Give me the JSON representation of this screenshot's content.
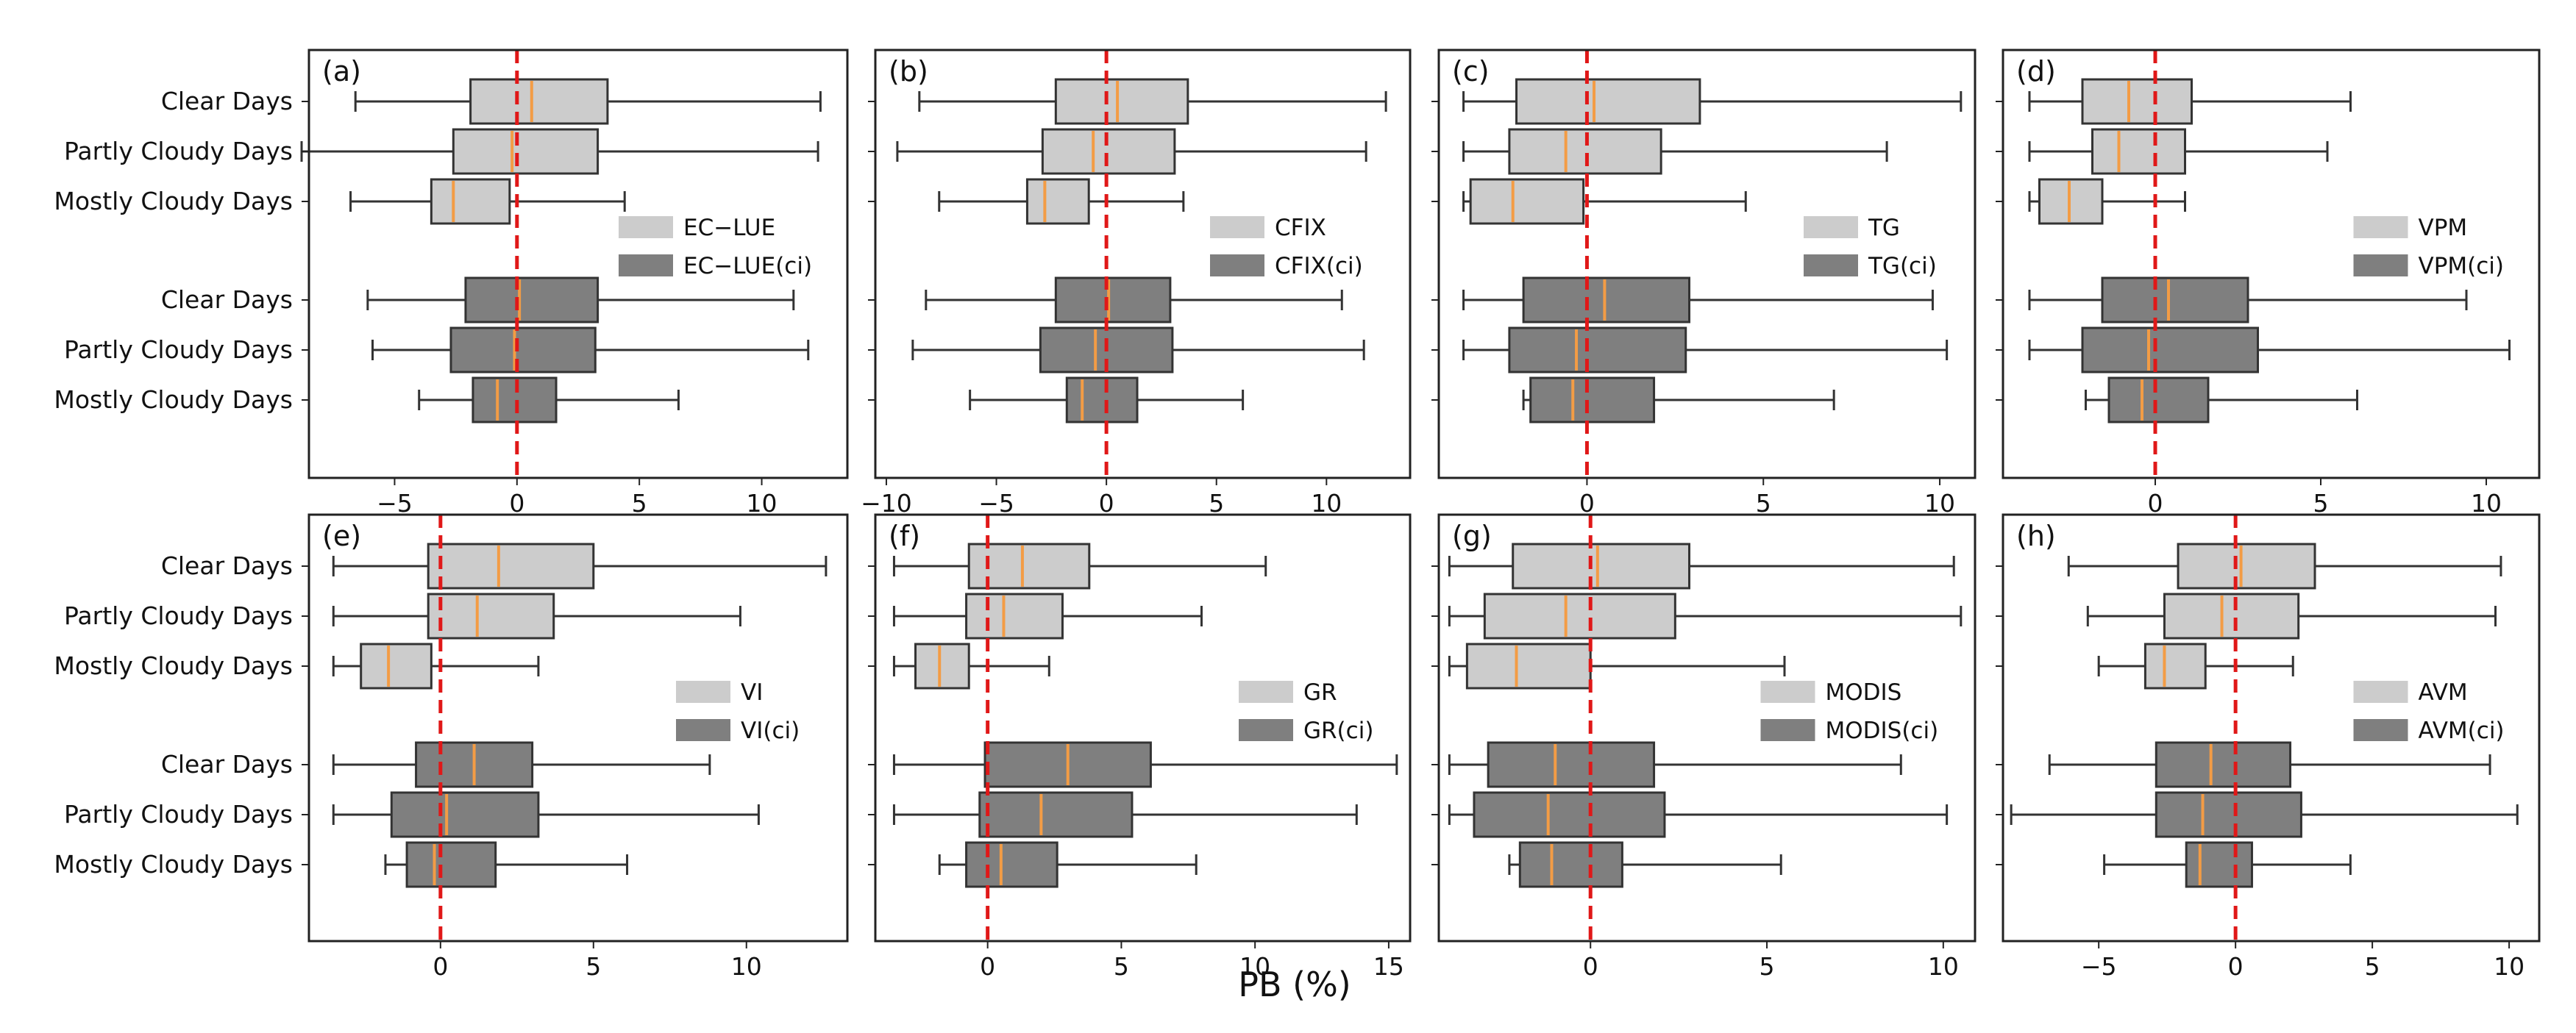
{
  "figure": {
    "xlabel": "PB (%)",
    "categories": [
      "Clear Days",
      "Partly Cloudy Days",
      "Mostly Cloudy Days",
      "Clear Days",
      "Partly Cloudy Days",
      "Mostly Cloudy Days"
    ],
    "colors": {
      "light": "#cccccc",
      "dark": "#7f7f7f",
      "median": "#f39c45",
      "zero_line": "#e01818",
      "whisker": "#333333"
    }
  },
  "chart_data": [
    {
      "type": "boxplot",
      "label": "(a)",
      "xlim": [
        -8.5,
        13.5
      ],
      "xticks": [
        -5,
        0,
        5,
        10
      ],
      "legend": [
        "EC−LUE",
        "EC−LUE(ci)"
      ],
      "boxes": [
        {
          "category": "Clear Days",
          "group": "EC−LUE",
          "whislo": -6.6,
          "q1": -1.9,
          "med": 0.6,
          "q3": 3.7,
          "whishi": 12.4
        },
        {
          "category": "Partly Cloudy Days",
          "group": "EC−LUE",
          "whislo": -8.8,
          "q1": -2.6,
          "med": -0.2,
          "q3": 3.3,
          "whishi": 12.3
        },
        {
          "category": "Mostly Cloudy Days",
          "group": "EC−LUE",
          "whislo": -6.8,
          "q1": -3.5,
          "med": -2.6,
          "q3": -0.3,
          "whishi": 4.4
        },
        {
          "category": "Clear Days",
          "group": "EC−LUE(ci)",
          "whislo": -6.1,
          "q1": -2.1,
          "med": 0.1,
          "q3": 3.3,
          "whishi": 11.3
        },
        {
          "category": "Partly Cloudy Days",
          "group": "EC−LUE(ci)",
          "whislo": -5.9,
          "q1": -2.7,
          "med": -0.1,
          "q3": 3.2,
          "whishi": 11.9
        },
        {
          "category": "Mostly Cloudy Days",
          "group": "EC−LUE(ci)",
          "whislo": -4.0,
          "q1": -1.8,
          "med": -0.8,
          "q3": 1.6,
          "whishi": 6.6
        }
      ]
    },
    {
      "type": "boxplot",
      "label": "(b)",
      "xlim": [
        -10.5,
        13.8
      ],
      "xticks": [
        -10,
        -5,
        0,
        5,
        10
      ],
      "legend": [
        "CFIX",
        "CFIX(ci)"
      ],
      "boxes": [
        {
          "category": "Clear Days",
          "group": "CFIX",
          "whislo": -8.5,
          "q1": -2.3,
          "med": 0.5,
          "q3": 3.7,
          "whishi": 12.7
        },
        {
          "category": "Partly Cloudy Days",
          "group": "CFIX",
          "whislo": -9.5,
          "q1": -2.9,
          "med": -0.6,
          "q3": 3.1,
          "whishi": 11.8
        },
        {
          "category": "Mostly Cloudy Days",
          "group": "CFIX",
          "whislo": -7.6,
          "q1": -3.6,
          "med": -2.8,
          "q3": -0.8,
          "whishi": 3.5
        },
        {
          "category": "Clear Days",
          "group": "CFIX(ci)",
          "whislo": -8.2,
          "q1": -2.3,
          "med": 0.1,
          "q3": 2.9,
          "whishi": 10.7
        },
        {
          "category": "Partly Cloudy Days",
          "group": "CFIX(ci)",
          "whislo": -8.8,
          "q1": -3.0,
          "med": -0.5,
          "q3": 3.0,
          "whishi": 11.7
        },
        {
          "category": "Mostly Cloudy Days",
          "group": "CFIX(ci)",
          "whislo": -6.2,
          "q1": -1.8,
          "med": -1.1,
          "q3": 1.4,
          "whishi": 6.2
        }
      ]
    },
    {
      "type": "boxplot",
      "label": "(c)",
      "xlim": [
        -4.2,
        11.0
      ],
      "xticks": [
        0,
        5,
        10
      ],
      "legend": [
        "TG",
        "TG(ci)"
      ],
      "boxes": [
        {
          "category": "Clear Days",
          "group": "TG",
          "whislo": -3.5,
          "q1": -2.0,
          "med": 0.2,
          "q3": 3.2,
          "whishi": 10.6
        },
        {
          "category": "Partly Cloudy Days",
          "group": "TG",
          "whislo": -3.5,
          "q1": -2.2,
          "med": -0.6,
          "q3": 2.1,
          "whishi": 8.5
        },
        {
          "category": "Mostly Cloudy Days",
          "group": "TG",
          "whislo": -3.5,
          "q1": -3.3,
          "med": -2.1,
          "q3": -0.1,
          "whishi": 4.5
        },
        {
          "category": "Clear Days",
          "group": "TG(ci)",
          "whislo": -3.5,
          "q1": -1.8,
          "med": 0.5,
          "q3": 2.9,
          "whishi": 9.8
        },
        {
          "category": "Partly Cloudy Days",
          "group": "TG(ci)",
          "whislo": -3.5,
          "q1": -2.2,
          "med": -0.3,
          "q3": 2.8,
          "whishi": 10.2
        },
        {
          "category": "Mostly Cloudy Days",
          "group": "TG(ci)",
          "whislo": -1.8,
          "q1": -1.6,
          "med": -0.4,
          "q3": 1.9,
          "whishi": 7.0
        }
      ]
    },
    {
      "type": "boxplot",
      "label": "(d)",
      "xlim": [
        -4.6,
        11.6
      ],
      "xticks": [
        0,
        5,
        10
      ],
      "legend": [
        "VPM",
        "VPM(ci)"
      ],
      "boxes": [
        {
          "category": "Clear Days",
          "group": "VPM",
          "whislo": -3.8,
          "q1": -2.2,
          "med": -0.8,
          "q3": 1.1,
          "whishi": 5.9
        },
        {
          "category": "Partly Cloudy Days",
          "group": "VPM",
          "whislo": -3.8,
          "q1": -1.9,
          "med": -1.1,
          "q3": 0.9,
          "whishi": 5.2
        },
        {
          "category": "Mostly Cloudy Days",
          "group": "VPM",
          "whislo": -3.8,
          "q1": -3.5,
          "med": -2.6,
          "q3": -1.6,
          "whishi": 0.9
        },
        {
          "category": "Clear Days",
          "group": "VPM(ci)",
          "whislo": -3.8,
          "q1": -1.6,
          "med": 0.4,
          "q3": 2.8,
          "whishi": 9.4
        },
        {
          "category": "Partly Cloudy Days",
          "group": "VPM(ci)",
          "whislo": -3.8,
          "q1": -2.2,
          "med": -0.2,
          "q3": 3.1,
          "whishi": 10.7
        },
        {
          "category": "Mostly Cloudy Days",
          "group": "VPM(ci)",
          "whislo": -2.1,
          "q1": -1.4,
          "med": -0.4,
          "q3": 1.6,
          "whishi": 6.1
        }
      ]
    },
    {
      "type": "boxplot",
      "label": "(e)",
      "xlim": [
        -4.3,
        13.3
      ],
      "xticks": [
        0,
        5,
        10
      ],
      "legend": [
        "VI",
        "VI(ci)"
      ],
      "boxes": [
        {
          "category": "Clear Days",
          "group": "VI",
          "whislo": -3.5,
          "q1": -0.4,
          "med": 1.9,
          "q3": 5.0,
          "whishi": 12.6
        },
        {
          "category": "Partly Cloudy Days",
          "group": "VI",
          "whislo": -3.5,
          "q1": -0.4,
          "med": 1.2,
          "q3": 3.7,
          "whishi": 9.8
        },
        {
          "category": "Mostly Cloudy Days",
          "group": "VI",
          "whislo": -3.5,
          "q1": -2.6,
          "med": -1.7,
          "q3": -0.3,
          "whishi": 3.2
        },
        {
          "category": "Clear Days",
          "group": "VI(ci)",
          "whislo": -3.5,
          "q1": -0.8,
          "med": 1.1,
          "q3": 3.0,
          "whishi": 8.8
        },
        {
          "category": "Partly Cloudy Days",
          "group": "VI(ci)",
          "whislo": -3.5,
          "q1": -1.6,
          "med": 0.2,
          "q3": 3.2,
          "whishi": 10.4
        },
        {
          "category": "Mostly Cloudy Days",
          "group": "VI(ci)",
          "whislo": -1.8,
          "q1": -1.1,
          "med": -0.2,
          "q3": 1.8,
          "whishi": 6.1
        }
      ]
    },
    {
      "type": "boxplot",
      "label": "(f)",
      "xlim": [
        -4.2,
        15.8
      ],
      "xticks": [
        0,
        5,
        10,
        15
      ],
      "legend": [
        "GR",
        "GR(ci)"
      ],
      "boxes": [
        {
          "category": "Clear Days",
          "group": "GR",
          "whislo": -3.5,
          "q1": -0.7,
          "med": 1.3,
          "q3": 3.8,
          "whishi": 10.4
        },
        {
          "category": "Partly Cloudy Days",
          "group": "GR",
          "whislo": -3.5,
          "q1": -0.8,
          "med": 0.6,
          "q3": 2.8,
          "whishi": 8.0
        },
        {
          "category": "Mostly Cloudy Days",
          "group": "GR",
          "whislo": -3.5,
          "q1": -2.7,
          "med": -1.8,
          "q3": -0.7,
          "whishi": 2.3
        },
        {
          "category": "Clear Days",
          "group": "GR(ci)",
          "whislo": -3.5,
          "q1": -0.1,
          "med": 3.0,
          "q3": 6.1,
          "whishi": 15.3
        },
        {
          "category": "Partly Cloudy Days",
          "group": "GR(ci)",
          "whislo": -3.5,
          "q1": -0.3,
          "med": 2.0,
          "q3": 5.4,
          "whishi": 13.8
        },
        {
          "category": "Mostly Cloudy Days",
          "group": "GR(ci)",
          "whislo": -1.8,
          "q1": -0.8,
          "med": 0.5,
          "q3": 2.6,
          "whishi": 7.8
        }
      ]
    },
    {
      "type": "boxplot",
      "label": "(g)",
      "xlim": [
        -4.3,
        10.9
      ],
      "xticks": [
        0,
        5,
        10
      ],
      "legend": [
        "MODIS",
        "MODIS(ci)"
      ],
      "boxes": [
        {
          "category": "Clear Days",
          "group": "MODIS",
          "whislo": -4.0,
          "q1": -2.2,
          "med": 0.2,
          "q3": 2.8,
          "whishi": 10.3
        },
        {
          "category": "Partly Cloudy Days",
          "group": "MODIS",
          "whislo": -4.0,
          "q1": -3.0,
          "med": -0.7,
          "q3": 2.4,
          "whishi": 10.5
        },
        {
          "category": "Mostly Cloudy Days",
          "group": "MODIS",
          "whislo": -4.0,
          "q1": -3.5,
          "med": -2.1,
          "q3": 0.0,
          "whishi": 5.5
        },
        {
          "category": "Clear Days",
          "group": "MODIS(ci)",
          "whislo": -4.0,
          "q1": -2.9,
          "med": -1.0,
          "q3": 1.8,
          "whishi": 8.8
        },
        {
          "category": "Partly Cloudy Days",
          "group": "MODIS(ci)",
          "whislo": -4.0,
          "q1": -3.3,
          "med": -1.2,
          "q3": 2.1,
          "whishi": 10.1
        },
        {
          "category": "Mostly Cloudy Days",
          "group": "MODIS(ci)",
          "whislo": -2.3,
          "q1": -2.0,
          "med": -1.1,
          "q3": 0.9,
          "whishi": 5.4
        }
      ]
    },
    {
      "type": "boxplot",
      "label": "(h)",
      "xlim": [
        -8.5,
        11.1
      ],
      "xticks": [
        -5,
        0,
        5,
        10
      ],
      "legend": [
        "AVM",
        "AVM(ci)"
      ],
      "boxes": [
        {
          "category": "Clear Days",
          "group": "AVM",
          "whislo": -6.1,
          "q1": -2.1,
          "med": 0.2,
          "q3": 2.9,
          "whishi": 9.7
        },
        {
          "category": "Partly Cloudy Days",
          "group": "AVM",
          "whislo": -5.4,
          "q1": -2.6,
          "med": -0.5,
          "q3": 2.3,
          "whishi": 9.5
        },
        {
          "category": "Mostly Cloudy Days",
          "group": "AVM",
          "whislo": -5.0,
          "q1": -3.3,
          "med": -2.6,
          "q3": -1.1,
          "whishi": 2.1
        },
        {
          "category": "Clear Days",
          "group": "AVM(ci)",
          "whislo": -6.8,
          "q1": -2.9,
          "med": -0.9,
          "q3": 2.0,
          "whishi": 9.3
        },
        {
          "category": "Partly Cloudy Days",
          "group": "AVM(ci)",
          "whislo": -8.2,
          "q1": -2.9,
          "med": -1.2,
          "q3": 2.4,
          "whishi": 10.3
        },
        {
          "category": "Mostly Cloudy Days",
          "group": "AVM(ci)",
          "whislo": -4.8,
          "q1": -1.8,
          "med": -1.3,
          "q3": 0.6,
          "whishi": 4.2
        }
      ]
    }
  ]
}
